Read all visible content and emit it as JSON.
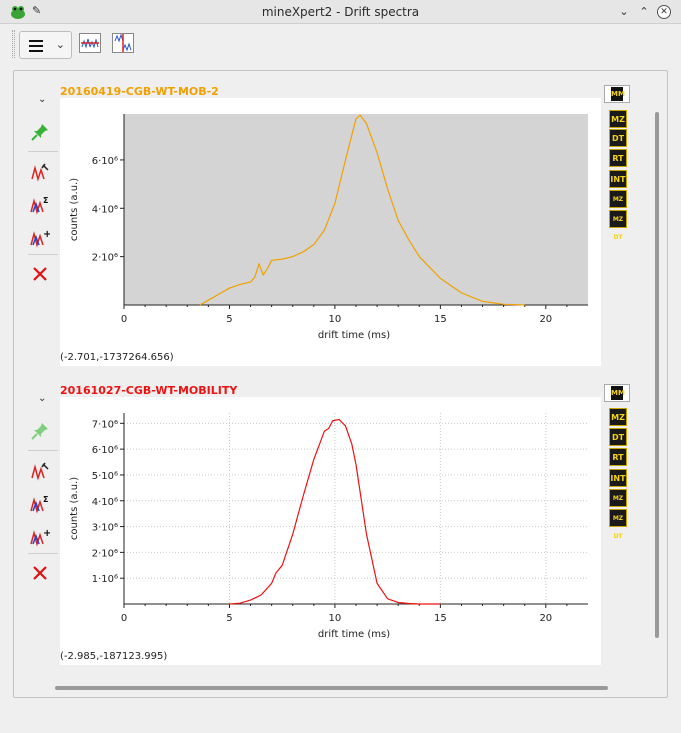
{
  "window": {
    "title": "mineXpert2 - Drift spectra"
  },
  "toolbar": {
    "main_menu_icon": "hamburger-menu-icon",
    "tool_1_icon": "spectra-horizontal-icon",
    "tool_2_icon": "spectra-vertical-icon"
  },
  "colors": {
    "plot1": "#f0a000",
    "plot2": "#ee1111",
    "plot1_bg": "#d4d4d4",
    "title1": "#f0a000",
    "title2": "#ee1111"
  },
  "plots": [
    {
      "sample_name": "20160419-CGB-WT-MOB-2",
      "coords": "(-2.701,-1737264.656)",
      "x_axis_label": "drift time (ms)",
      "y_axis_label": "counts (a.u.)",
      "x_ticks": [
        "0",
        "5",
        "10",
        "15",
        "20"
      ],
      "y_ticks": [
        "2·10⁶",
        "4·10⁶",
        "6·10⁶"
      ]
    },
    {
      "sample_name": "20161027-CGB-WT-MOBILITY",
      "coords": "(-2.985,-187123.995)",
      "x_axis_label": "drift time (ms)",
      "y_axis_label": "counts (a.u.)",
      "x_ticks": [
        "0",
        "5",
        "10",
        "15",
        "20"
      ],
      "y_ticks": [
        "1·10⁶",
        "2·10⁶",
        "3·10⁶",
        "4·10⁶",
        "5·10⁶",
        "6·10⁶",
        "7·10⁶"
      ]
    }
  ],
  "right_icon_labels": [
    "MZ",
    "DT",
    "RT",
    "INT",
    "MZ RT",
    "MZ DT"
  ],
  "chart_data": [
    {
      "type": "line",
      "title": "20160419-CGB-WT-MOB-2",
      "xlabel": "drift time (ms)",
      "ylabel": "counts (a.u.)",
      "xlim": [
        0,
        22
      ],
      "ylim": [
        0,
        7900000
      ],
      "grid": false,
      "series": [
        {
          "name": "20160419-CGB-WT-MOB-2",
          "x": [
            3.6,
            4,
            4.5,
            5,
            5.5,
            6,
            6.2,
            6.4,
            6.6,
            6.8,
            7.0,
            7.5,
            8.0,
            8.5,
            9.0,
            9.5,
            10.0,
            10.5,
            11.0,
            11.2,
            11.5,
            12.0,
            12.5,
            13.0,
            13.5,
            14.0,
            15.0,
            16.0,
            17.0,
            18.0,
            19.0
          ],
          "y": [
            0,
            200000,
            450000,
            700000,
            850000,
            950000,
            1150000,
            1700000,
            1250000,
            1500000,
            1850000,
            1900000,
            2000000,
            2200000,
            2500000,
            3100000,
            4200000,
            6000000,
            7700000,
            7850000,
            7500000,
            6300000,
            4800000,
            3500000,
            2700000,
            2000000,
            1100000,
            500000,
            150000,
            30000,
            0
          ]
        }
      ]
    },
    {
      "type": "line",
      "title": "20161027-CGB-WT-MOBILITY",
      "xlabel": "drift time (ms)",
      "ylabel": "counts (a.u.)",
      "xlim": [
        0,
        22
      ],
      "ylim": [
        0,
        7400000
      ],
      "grid": true,
      "series": [
        {
          "name": "20161027-CGB-WT-MOBILITY",
          "x": [
            5,
            5.5,
            6,
            6.5,
            7,
            7.2,
            7.5,
            8.0,
            8.5,
            9.0,
            9.5,
            9.7,
            9.9,
            10.2,
            10.5,
            10.8,
            11.0,
            11.5,
            12.0,
            12.5,
            13.0,
            13.5,
            14.0,
            15.0
          ],
          "y": [
            0,
            30000,
            150000,
            350000,
            800000,
            1200000,
            1500000,
            2700000,
            4200000,
            5600000,
            6700000,
            6800000,
            7100000,
            7150000,
            6900000,
            6200000,
            5400000,
            2700000,
            800000,
            200000,
            60000,
            20000,
            0,
            0
          ]
        }
      ]
    }
  ]
}
